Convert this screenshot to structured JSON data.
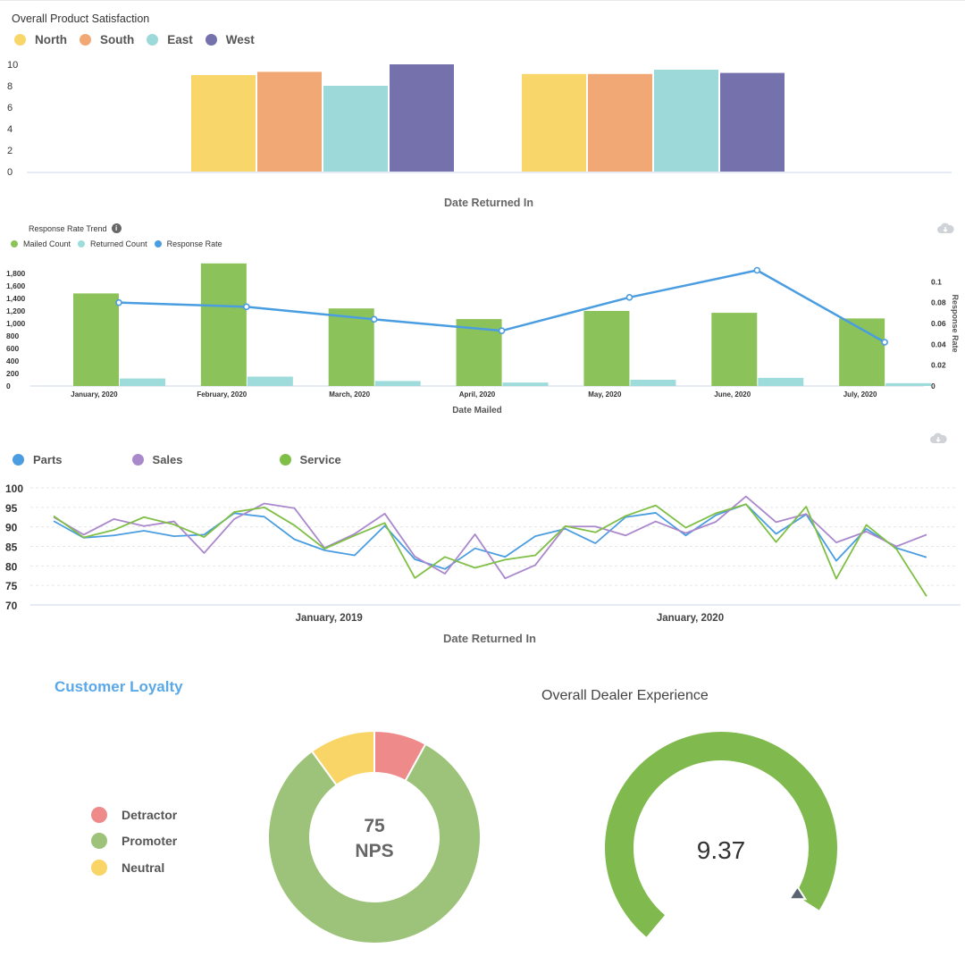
{
  "chart_data": [
    {
      "type": "bar",
      "title": "Overall Product Satisfaction",
      "xlabel": "Date Returned In",
      "ylabel": "",
      "ylim": [
        0,
        10
      ],
      "yticks": [
        "0",
        "2",
        "4",
        "6",
        "8",
        "10"
      ],
      "categories": [
        "",
        ""
      ],
      "series": [
        {
          "name": "North",
          "color": "#f9d66a",
          "values": [
            9.0,
            9.1
          ]
        },
        {
          "name": "South",
          "color": "#f2a874",
          "values": [
            9.3,
            9.1
          ]
        },
        {
          "name": "East",
          "color": "#9ed9d9",
          "values": [
            8.0,
            9.5
          ]
        },
        {
          "name": "West",
          "color": "#7571ad",
          "values": [
            10.0,
            9.2
          ]
        }
      ],
      "legend_position": "top-left",
      "grid": false
    },
    {
      "type": "bar+line",
      "title": "Response Rate Trend",
      "xlabel": "Date Mailed",
      "ylabel_right": "Response Rate",
      "ylim": [
        0,
        2000
      ],
      "ylim_right": [
        0,
        0.12
      ],
      "yticks": [
        "0",
        "200",
        "400",
        "600",
        "800",
        "1,000",
        "1,200",
        "1,400",
        "1,600",
        "1,800"
      ],
      "yticks_right": [
        "0",
        "0.02",
        "0.04",
        "0.06",
        "0.08",
        "0.1"
      ],
      "categories": [
        "January, 2020",
        "February, 2020",
        "March, 2020",
        "April, 2020",
        "May, 2020",
        "June, 2020",
        "July, 2020"
      ],
      "series": [
        {
          "name": "Mailed Count",
          "kind": "bar",
          "color": "#8bc25a",
          "values": [
            1480,
            1960,
            1240,
            1070,
            1200,
            1170,
            1080
          ]
        },
        {
          "name": "Returned Count",
          "kind": "bar",
          "color": "#9edcdb",
          "values": [
            120,
            150,
            80,
            55,
            100,
            130,
            45
          ]
        },
        {
          "name": "Response Rate",
          "kind": "line",
          "axis": "right",
          "color": "#4a9de0",
          "values": [
            0.08,
            0.076,
            0.064,
            0.053,
            0.085,
            0.111,
            0.042
          ]
        }
      ],
      "legend_position": "top-left"
    },
    {
      "type": "line",
      "title": "",
      "xlabel": "Date Returned In",
      "ylim": [
        70,
        100
      ],
      "yticks": [
        "70",
        "75",
        "80",
        "85",
        "90",
        "95",
        "100"
      ],
      "xtick_labels": [
        "January, 2019",
        "January, 2020"
      ],
      "xtick_indices": [
        9,
        21
      ],
      "x_count": 30,
      "series": [
        {
          "name": "Parts",
          "color": "#4a9de0",
          "values": [
            91.5,
            87.2,
            87.8,
            89.0,
            87.6,
            88.0,
            93.5,
            92.6,
            86.8,
            84.0,
            82.7,
            90.3,
            81.7,
            79.2,
            84.5,
            82.3,
            87.6,
            89.5,
            85.8,
            92.5,
            93.6,
            87.8,
            93.0,
            95.8,
            88.2,
            93.2,
            81.3,
            89.5,
            84.6,
            82.2
          ]
        },
        {
          "name": "Sales",
          "color": "#aa88cc",
          "values": [
            92.5,
            88.0,
            92.0,
            90.2,
            91.4,
            83.3,
            92.0,
            96.0,
            94.8,
            84.6,
            88.2,
            93.4,
            82.4,
            78.0,
            88.1,
            76.8,
            80.2,
            90.1,
            90.1,
            87.8,
            91.4,
            88.4,
            91.3,
            97.8,
            91.2,
            93.3,
            86.0,
            88.8,
            85.0,
            88.0
          ]
        },
        {
          "name": "Service",
          "color": "#7fbf45",
          "values": [
            92.8,
            87.3,
            89.2,
            92.5,
            90.6,
            87.4,
            93.8,
            95.0,
            90.4,
            84.4,
            87.8,
            91.0,
            76.9,
            82.3,
            79.5,
            81.6,
            82.7,
            90.2,
            88.6,
            92.8,
            95.5,
            89.8,
            93.5,
            95.8,
            86.1,
            95.2,
            76.7,
            90.5,
            84.3,
            72.2
          ]
        }
      ],
      "legend_position": "top-left",
      "grid": true
    },
    {
      "type": "pie",
      "title": "Customer Loyalty",
      "center_value": "75",
      "center_label": "NPS",
      "slices": [
        {
          "name": "Detractor",
          "color": "#ee8a8a",
          "value": 8
        },
        {
          "name": "Promoter",
          "color": "#9dc37a",
          "value": 82
        },
        {
          "name": "Neutral",
          "color": "#f9d568",
          "value": 10
        }
      ],
      "legend_position": "left"
    },
    {
      "type": "gauge",
      "title": "Overall Dealer Experience",
      "value": 9.37,
      "value_label": "9.37",
      "max": 10,
      "color": "#80ba4f",
      "marker_color": "#5a6470"
    }
  ],
  "icons": {
    "download": "cloud-download-icon",
    "info": "info-icon"
  }
}
